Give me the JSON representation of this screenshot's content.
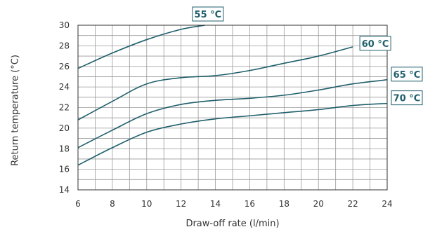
{
  "chart_data": {
    "type": "line",
    "title": "",
    "xlabel": "Draw-off rate (l/min)",
    "ylabel": "Return temperature (°C)",
    "xlim": [
      6,
      24
    ],
    "ylim": [
      14,
      30
    ],
    "x_ticks": [
      6,
      8,
      10,
      12,
      14,
      16,
      18,
      20,
      22,
      24
    ],
    "y_ticks": [
      14,
      16,
      18,
      20,
      22,
      24,
      26,
      28,
      30
    ],
    "x_tick_labels": [
      "6",
      "8",
      "10",
      "12",
      "14",
      "16",
      "18",
      "20",
      "22",
      "24"
    ],
    "y_tick_labels": [
      "14",
      "16",
      "18",
      "20",
      "22",
      "24",
      "26",
      "28",
      "30"
    ],
    "grid": true,
    "accent_color": "#1f5f6b",
    "series": [
      {
        "name": "55 °C",
        "x": [
          6,
          8,
          10,
          12,
          13.4
        ],
        "y": [
          25.8,
          27.3,
          28.6,
          29.6,
          30
        ]
      },
      {
        "name": "60 °C",
        "x": [
          6,
          8,
          10,
          12,
          14,
          16,
          18,
          20,
          22
        ],
        "y": [
          20.8,
          22.6,
          24.3,
          24.9,
          25.1,
          25.6,
          26.3,
          27.0,
          27.9
        ]
      },
      {
        "name": "65 °C",
        "x": [
          6,
          8,
          10,
          12,
          14,
          16,
          18,
          20,
          22,
          24
        ],
        "y": [
          18.1,
          19.8,
          21.4,
          22.3,
          22.7,
          22.9,
          23.2,
          23.7,
          24.3,
          24.7
        ]
      },
      {
        "name": "70 °C",
        "x": [
          6,
          8,
          10,
          12,
          14,
          16,
          18,
          20,
          22,
          24
        ],
        "y": [
          16.4,
          18.1,
          19.6,
          20.4,
          20.9,
          21.2,
          21.5,
          21.8,
          22.2,
          22.4
        ]
      }
    ]
  }
}
